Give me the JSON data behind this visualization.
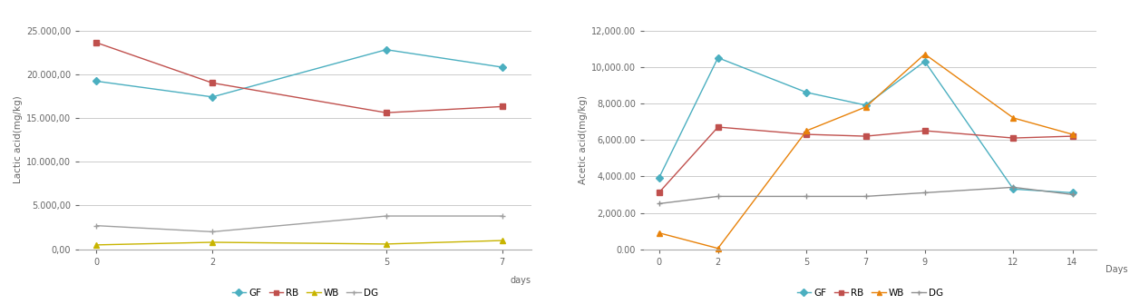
{
  "lactic": {
    "days": [
      0,
      2,
      5,
      7
    ],
    "GF": [
      19200,
      17400,
      22800,
      20800
    ],
    "RB": [
      23600,
      19000,
      15600,
      16300
    ],
    "WB": [
      500,
      800,
      600,
      1000
    ],
    "DG": [
      2700,
      2000,
      3800,
      3800
    ],
    "ylabel": "Lactic acid(mg/kg)",
    "xlabel": "days",
    "ylim": [
      0,
      25000
    ],
    "yticks": [
      0,
      5000,
      10000,
      15000,
      20000,
      25000
    ]
  },
  "acetic": {
    "days": [
      0,
      2,
      5,
      7,
      9,
      12,
      14
    ],
    "GF": [
      3900,
      10500,
      8600,
      7900,
      10300,
      3300,
      3100
    ],
    "RB": [
      3100,
      6700,
      6300,
      6200,
      6500,
      6100,
      6200
    ],
    "WB": [
      900,
      50,
      6500,
      7800,
      10700,
      7200,
      6300
    ],
    "DG": [
      2500,
      2900,
      2900,
      2900,
      3100,
      3400,
      3000
    ],
    "ylabel": "Acetic acid(mg/kg)",
    "xlabel": "Days",
    "ylim": [
      0,
      12000
    ],
    "yticks": [
      0,
      2000,
      4000,
      6000,
      8000,
      10000,
      12000
    ]
  },
  "colors": {
    "GF": "#4BAFC0",
    "RB": "#C0504D",
    "WB": "#C8B400",
    "DG": "#A0A0A0"
  },
  "colors_acetic": {
    "GF": "#4BAFC0",
    "RB": "#C0504D",
    "WB": "#E8820A",
    "DG": "#909090"
  },
  "markers": {
    "GF": "D",
    "RB": "s",
    "WB": "^",
    "DG": "+"
  },
  "background_color": "#FFFFFF",
  "grid_color": "#CCCCCC",
  "tick_color": "#666666",
  "spine_color": "#AAAAAA"
}
